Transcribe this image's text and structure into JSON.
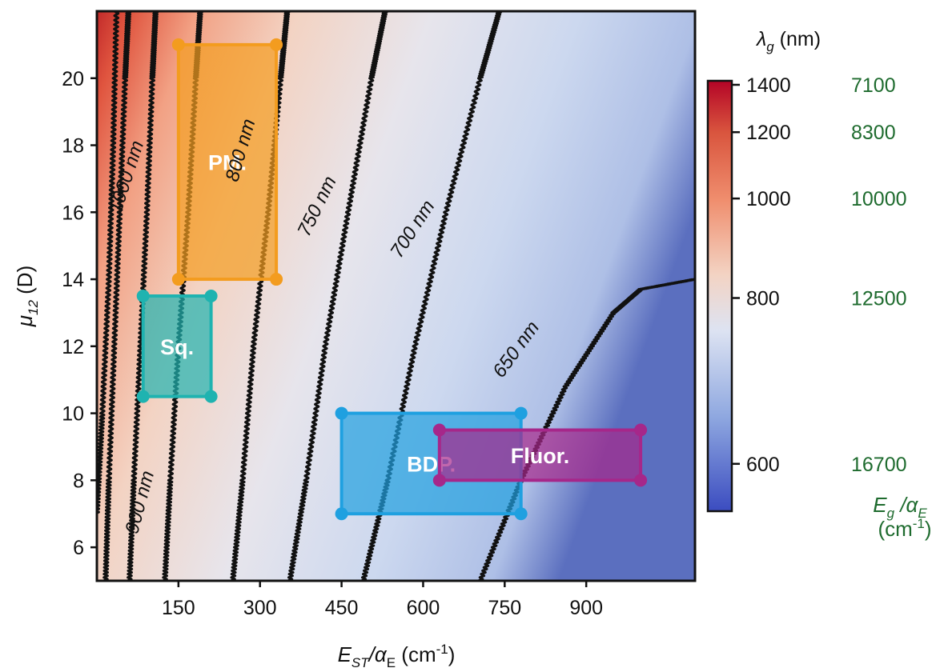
{
  "chart_data": {
    "type": "heatmap",
    "xlabel": {
      "main": "E",
      "sub": "ST",
      "mid": "/α",
      "sub2": "E",
      "unit": " (cm",
      "sup": "-1",
      "tail": ")"
    },
    "ylabel": {
      "main": "μ",
      "sub": "12",
      "unit": " (D)"
    },
    "xlim": [
      0,
      1100
    ],
    "ylim": [
      5,
      22
    ],
    "x_ticks": [
      "150",
      "300",
      "450",
      "600",
      "750",
      "900"
    ],
    "x_tick_values": [
      150,
      300,
      450,
      600,
      750,
      900
    ],
    "y_ticks": [
      "6",
      "8",
      "10",
      "12",
      "14",
      "16",
      "18",
      "20"
    ],
    "y_tick_values": [
      6,
      8,
      10,
      12,
      14,
      16,
      18,
      20
    ],
    "colorbar": {
      "title": {
        "main": "λ",
        "sub": "g",
        "unit": " (nm)"
      },
      "range": [
        560,
        1420
      ],
      "ticks": [
        "1400",
        "1200",
        "1000",
        "800",
        "600"
      ],
      "tick_values": [
        1400,
        1200,
        1000,
        800,
        600
      ],
      "scale": "reciprocal",
      "colormap": [
        "#3b4cc0",
        "#8fa8e0",
        "#dde3f2",
        "#f2d4c4",
        "#f08f6f",
        "#c0212a",
        "#b40426"
      ]
    },
    "energy_axis": {
      "title": {
        "main": "E",
        "sub": "g",
        "mid": " /α",
        "sub2": "E",
        "unit": "(cm",
        "sup": "-1",
        "tail": ")"
      },
      "ticks": [
        "7100",
        "8300",
        "10000",
        "12500",
        "16700"
      ],
      "color": "#1e6b2e"
    },
    "contours": [
      {
        "label": "",
        "points": [
          [
            16,
            5
          ],
          [
            22,
            8
          ],
          [
            32,
            12
          ],
          [
            42,
            16
          ],
          [
            52,
            20
          ],
          [
            58,
            22
          ]
        ]
      },
      {
        "label": "",
        "points": [
          [
            60,
            5
          ],
          [
            68,
            8
          ],
          [
            80,
            12
          ],
          [
            92,
            16
          ],
          [
            102,
            20
          ],
          [
            108,
            22
          ]
        ]
      },
      {
        "label": "900 nm",
        "points": [
          [
            125,
            5
          ],
          [
            135,
            8
          ],
          [
            150,
            12
          ],
          [
            168,
            16
          ],
          [
            182,
            20
          ],
          [
            190,
            22
          ]
        ]
      },
      {
        "label": "1000 nm",
        "points": [
          [
            0,
            7
          ],
          [
            10,
            10
          ],
          [
            22,
            14
          ],
          [
            30,
            18
          ],
          [
            36,
            22
          ]
        ]
      },
      {
        "label": "800 nm",
        "points": [
          [
            250,
            5
          ],
          [
            268,
            8
          ],
          [
            288,
            12
          ],
          [
            315,
            16
          ],
          [
            338,
            20
          ],
          [
            350,
            22
          ]
        ]
      },
      {
        "label": "750 nm",
        "points": [
          [
            355,
            5
          ],
          [
            385,
            8
          ],
          [
            420,
            12
          ],
          [
            462,
            16
          ],
          [
            505,
            20
          ],
          [
            530,
            22
          ]
        ]
      },
      {
        "label": "700 nm",
        "points": [
          [
            490,
            5
          ],
          [
            535,
            8
          ],
          [
            585,
            12
          ],
          [
            642,
            16
          ],
          [
            705,
            20
          ],
          [
            740,
            22
          ]
        ]
      },
      {
        "label": "650 nm",
        "points": [
          [
            705,
            5
          ],
          [
            780,
            8
          ],
          [
            862,
            10.8
          ],
          [
            950,
            13
          ],
          [
            1000,
            13.7
          ],
          [
            1100,
            14
          ]
        ]
      }
    ],
    "regions": [
      {
        "label": "PM.",
        "x": [
          150,
          330
        ],
        "y": [
          14,
          21
        ],
        "color": "#f39c1f"
      },
      {
        "label": "Sq.",
        "x": [
          85,
          210
        ],
        "y": [
          10.5,
          13.5
        ],
        "color": "#1fb3b0"
      },
      {
        "label": "BDP.",
        "x": [
          450,
          780
        ],
        "y": [
          7,
          10
        ],
        "color": "#1fa0e0"
      },
      {
        "label": "Fluor.",
        "x": [
          630,
          1000
        ],
        "y": [
          8,
          9.5
        ],
        "color": "#a6278a"
      }
    ]
  }
}
